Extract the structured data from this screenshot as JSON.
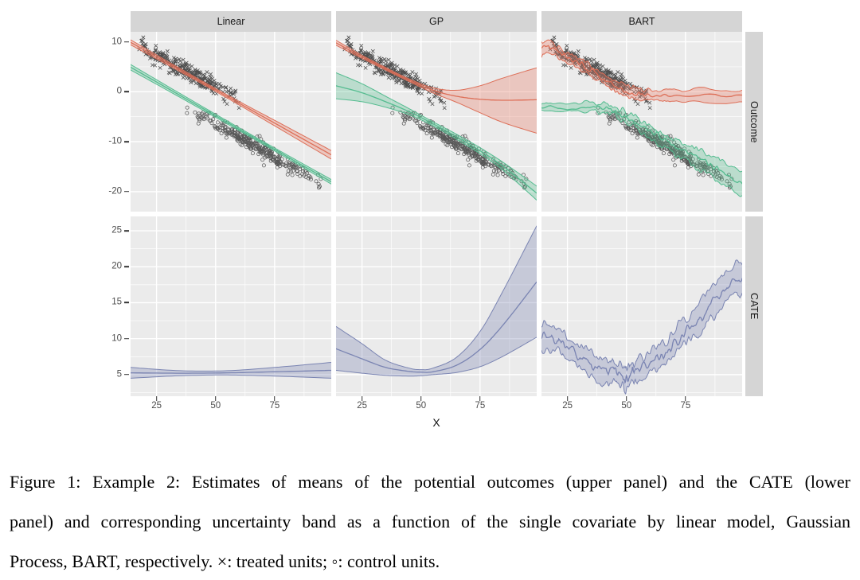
{
  "figure": {
    "caption_lines": [
      "Figure 1: Example 2: Estimates of means of the potential outcomes (upper panel) and the CATE (lower",
      "panel) and corresponding uncertainty band as a function of the single covariate by linear model, Gaussian",
      "Process, BART, respectively. ×: treated units; ◦: control units."
    ]
  },
  "chart_data": {
    "type": "line",
    "subtype": "faceted scatter with fitted mean curves and uncertainty ribbons (ggplot theme)",
    "facet_cols": [
      "Linear",
      "GP",
      "BART"
    ],
    "facet_rows": [
      "Outcome",
      "CATE"
    ],
    "x_axis": {
      "label": "X",
      "domain": [
        14,
        99
      ],
      "ticks": [
        25,
        50,
        75
      ],
      "minor_ticks": [
        37.5,
        62.5,
        87.5
      ]
    },
    "y_axes": {
      "outcome": {
        "domain": [
          -24,
          12
        ],
        "ticks": [
          10,
          0,
          -10,
          -20
        ],
        "minor_ticks": [
          5,
          -5,
          -15
        ]
      },
      "cate": {
        "domain": [
          2,
          27
        ],
        "ticks": [
          25,
          20,
          15,
          10,
          5
        ],
        "minor_ticks": [
          22.5,
          17.5,
          12.5,
          7.5,
          2.5
        ]
      }
    },
    "colors": {
      "treated_line": "#DD6F58",
      "treated_fill": "rgba(232,129,108,0.35)",
      "control_line": "#55BC90",
      "control_fill": "rgba(90,190,146,0.33)",
      "cate_line": "#7A84B2",
      "cate_fill": "rgba(122,132,178,0.32)",
      "panel_bg": "#EBEBEB",
      "strip_bg": "#D5D5D5",
      "grid": "#FFFFFF",
      "tick_text": "#4D4D4D",
      "scatter": "#1a1a1a"
    },
    "scatter": {
      "treated": {
        "glyph": "×",
        "n": 300,
        "x_min": 16,
        "x_max": 63,
        "intercept": 13.5,
        "slope": -0.25,
        "sd": 0.85,
        "seed": 12
      },
      "control": {
        "glyph": "◦",
        "n": 300,
        "x_min": 37,
        "x_max": 97,
        "intercept": 6.8,
        "slope": -0.265,
        "sd": 0.85,
        "seed": 77
      }
    },
    "panels": {
      "linear_outcome": {
        "row": "outcome",
        "scatter": true,
        "series": [
          {
            "group": "treated",
            "roughness": 0,
            "x": [
              14,
              30,
              45,
              60,
              75,
              99
            ],
            "mean": [
              9.9,
              5.65,
              1.68,
              -2.3,
              -6.27,
              -12.63
            ],
            "lower": [
              9.4,
              5.3,
              1.4,
              -2.65,
              -6.82,
              -13.48
            ],
            "upper": [
              10.4,
              6.0,
              1.96,
              -1.95,
              -5.72,
              -11.78
            ]
          },
          {
            "group": "control",
            "roughness": 0,
            "x": [
              14,
              30,
              45,
              60,
              75,
              99
            ],
            "mean": [
              4.92,
              0.6,
              -3.45,
              -7.5,
              -11.55,
              -18.03
            ],
            "lower": [
              4.37,
              0.18,
              -3.78,
              -7.78,
              -11.85,
              -18.48
            ],
            "upper": [
              5.47,
              1.02,
              -3.12,
              -7.22,
              -11.25,
              -17.58
            ]
          }
        ]
      },
      "gp_outcome": {
        "row": "outcome",
        "scatter": true,
        "series": [
          {
            "group": "treated",
            "roughness": 0,
            "x": [
              14,
              25,
              35,
              45,
              55,
              65,
              75,
              85,
              99
            ],
            "mean": [
              9.8,
              7.0,
              4.6,
              2.3,
              0.3,
              -0.9,
              -1.5,
              -1.7,
              -1.6
            ],
            "lower": [
              9.3,
              6.7,
              4.35,
              2.05,
              -0.2,
              -2.1,
              -4.2,
              -6.2,
              -8.3
            ],
            "upper": [
              10.3,
              7.3,
              4.85,
              2.55,
              0.8,
              0.3,
              1.2,
              2.8,
              4.8
            ]
          },
          {
            "group": "control",
            "roughness": 0,
            "x": [
              14,
              25,
              35,
              45,
              55,
              65,
              75,
              85,
              99
            ],
            "mean": [
              1.2,
              -0.2,
              -2.0,
              -4.0,
              -6.4,
              -9.0,
              -11.8,
              -15.0,
              -20.3
            ],
            "lower": [
              -1.4,
              -2.0,
              -3.1,
              -4.6,
              -6.8,
              -9.5,
              -12.4,
              -15.8,
              -21.7
            ],
            "upper": [
              3.8,
              1.6,
              -0.9,
              -3.4,
              -6.0,
              -8.5,
              -11.2,
              -14.2,
              -18.9
            ]
          }
        ]
      },
      "bart_outcome": {
        "row": "outcome",
        "scatter": true,
        "series": [
          {
            "group": "treated",
            "roughness": 0.35,
            "x": [
              14,
              18,
              22,
              26,
              30,
              34,
              38,
              42,
              46,
              50,
              54,
              58,
              64,
              75,
              99
            ],
            "mean": [
              8.8,
              8.9,
              7.6,
              6.7,
              5.6,
              4.5,
              3.3,
              2.0,
              1.0,
              0.2,
              -0.4,
              -0.6,
              -0.6,
              -0.6,
              -0.6
            ],
            "lower": [
              7.4,
              7.8,
              6.6,
              5.7,
              4.6,
              3.5,
              2.3,
              1.0,
              0.0,
              -0.9,
              -1.6,
              -1.8,
              -1.8,
              -1.8,
              -1.8
            ],
            "upper": [
              10.1,
              9.9,
              8.6,
              7.7,
              6.6,
              5.5,
              4.3,
              3.0,
              2.0,
              1.3,
              0.6,
              0.5,
              0.5,
              0.5,
              0.5
            ]
          },
          {
            "group": "control",
            "roughness": 0.4,
            "x": [
              14,
              25,
              35,
              40,
              44,
              48,
              52,
              56,
              60,
              64,
              68,
              72,
              76,
              80,
              84,
              88,
              92,
              99
            ],
            "mean": [
              -3.0,
              -3.0,
              -3.05,
              -3.2,
              -3.7,
              -4.6,
              -5.6,
              -6.7,
              -7.9,
              -9.0,
              -10.2,
              -11.3,
              -12.3,
              -13.2,
              -14.2,
              -15.3,
              -16.5,
              -18.3
            ],
            "lower": [
              -3.9,
              -3.9,
              -3.95,
              -4.1,
              -4.7,
              -5.6,
              -6.7,
              -7.9,
              -9.2,
              -10.4,
              -11.6,
              -12.8,
              -14.0,
              -15.2,
              -16.4,
              -17.5,
              -18.8,
              -21.2
            ],
            "upper": [
              -2.2,
              -2.2,
              -2.25,
              -2.4,
              -2.8,
              -3.7,
              -4.6,
              -5.6,
              -6.7,
              -7.8,
              -8.9,
              -9.9,
              -10.8,
              -11.5,
              -12.2,
              -13.0,
              -14.3,
              -15.7
            ]
          }
        ]
      },
      "linear_cate": {
        "row": "cate",
        "scatter": false,
        "series": [
          {
            "group": "cate",
            "roughness": 0,
            "x": [
              14,
              35,
              55,
              75,
              99
            ],
            "mean": [
              5.25,
              5.2,
              5.25,
              5.4,
              5.6
            ],
            "lower": [
              4.5,
              4.85,
              4.95,
              4.8,
              4.5
            ],
            "upper": [
              6.0,
              5.55,
              5.55,
              6.0,
              6.7
            ]
          }
        ]
      },
      "gp_cate": {
        "row": "cate",
        "scatter": false,
        "series": [
          {
            "group": "cate",
            "roughness": 0,
            "x": [
              14,
              25,
              35,
              45,
              50,
              55,
              65,
              75,
              85,
              99
            ],
            "mean": [
              8.6,
              7.2,
              6.0,
              5.45,
              5.35,
              5.4,
              6.3,
              8.5,
              12.0,
              17.9
            ],
            "lower": [
              5.6,
              5.2,
              4.9,
              4.8,
              4.85,
              5.0,
              5.3,
              6.1,
              7.6,
              10.2
            ],
            "upper": [
              11.7,
              9.3,
              7.0,
              5.9,
              5.7,
              5.9,
              7.4,
              11.0,
              16.8,
              25.7
            ]
          }
        ]
      },
      "bart_cate": {
        "row": "cate",
        "scatter": false,
        "series": [
          {
            "group": "cate",
            "roughness": 0.5,
            "x": [
              14,
              18,
              22,
              26,
              30,
              34,
              38,
              42,
              45,
              48,
              50,
              52,
              54,
              58,
              62,
              66,
              70,
              74,
              78,
              82,
              86,
              90,
              94,
              99
            ],
            "mean": [
              10.4,
              10.3,
              9.4,
              8.6,
              7.6,
              6.6,
              5.7,
              5.3,
              5.6,
              4.6,
              4.3,
              5.2,
              5.4,
              6.2,
              7.0,
              8.0,
              9.2,
              10.5,
              11.8,
              13.2,
              14.8,
              16.3,
              17.7,
              18.4
            ],
            "lower": [
              8.7,
              8.8,
              7.9,
              7.1,
              6.2,
              5.2,
              4.3,
              4.0,
              4.2,
              3.3,
              3.0,
              3.9,
              4.1,
              4.8,
              5.6,
              6.5,
              7.7,
              8.9,
              10.1,
              11.4,
              12.7,
              14.1,
              15.5,
              16.1
            ],
            "upper": [
              12.0,
              11.8,
              10.9,
              10.1,
              9.1,
              8.1,
              7.2,
              6.7,
              7.0,
              6.1,
              5.7,
              6.6,
              6.8,
              7.7,
              8.5,
              9.6,
              10.8,
              12.2,
              13.6,
              15.1,
              16.9,
              18.6,
              19.9,
              20.9
            ]
          }
        ]
      }
    }
  }
}
